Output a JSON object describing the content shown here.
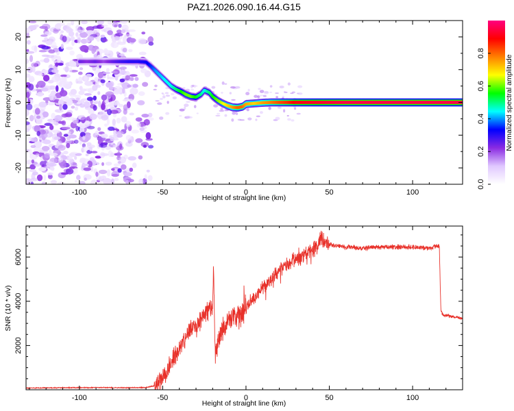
{
  "title": "PAZ1.2026.090.16.44.G15",
  "chart_data": [
    {
      "type": "heatmap",
      "xlabel": "Height of straight line (km)",
      "ylabel": "Frequency (Hz)",
      "xlim": [
        -132,
        130
      ],
      "ylim": [
        -25,
        25
      ],
      "xticks": [
        -100,
        -50,
        0,
        50,
        100
      ],
      "yticks": [
        -20,
        -10,
        0,
        10,
        20
      ],
      "colorbar": {
        "label": "Normalized spectral amplitude",
        "range": [
          0,
          1
        ],
        "ticks": [
          "0.0",
          "0.2",
          "0.4",
          "0.6",
          "0.8"
        ],
        "colors": [
          "#ffffff",
          "#e0c8ff",
          "#8a2be2",
          "#0000ff",
          "#00ffff",
          "#00ff00",
          "#ffff00",
          "#ff8000",
          "#ff0000",
          "#ff0080"
        ]
      },
      "ridge": {
        "x": [
          -100,
          -95,
          -90,
          -85,
          -80,
          -75,
          -70,
          -65,
          -60,
          -57,
          -54,
          -51,
          -48,
          -45,
          -42,
          -39,
          -36,
          -33,
          -30,
          -27,
          -25,
          -22,
          -20,
          -17,
          -14,
          -11,
          -8,
          -5,
          -2,
          0,
          5,
          10,
          15,
          20,
          25,
          30,
          40,
          60,
          80,
          100,
          120,
          130
        ],
        "y": [
          12.5,
          12.5,
          12.5,
          12.5,
          12.5,
          12.5,
          12.5,
          12.5,
          12.3,
          11,
          9.5,
          8,
          6.5,
          5,
          4,
          3.3,
          2.4,
          1.8,
          1.6,
          2.5,
          3.7,
          3,
          1.8,
          0.6,
          -0.3,
          -1,
          -1.5,
          -1.6,
          -1.3,
          -0.5,
          -0.3,
          -0.1,
          0,
          0,
          0,
          0,
          0,
          0,
          0,
          0,
          0,
          0
        ],
        "amplitude": [
          0.25,
          0.22,
          0.25,
          0.2,
          0.25,
          0.28,
          0.3,
          0.3,
          0.32,
          0.35,
          0.4,
          0.42,
          0.45,
          0.45,
          0.5,
          0.55,
          0.6,
          0.6,
          0.55,
          0.5,
          0.45,
          0.5,
          0.55,
          0.6,
          0.65,
          0.7,
          0.75,
          0.8,
          0.8,
          0.75,
          0.7,
          0.75,
          0.78,
          0.82,
          0.85,
          0.9,
          0.92,
          0.95,
          0.95,
          0.95,
          0.95,
          0.95
        ]
      },
      "noise_region_x": [
        -132,
        -57
      ]
    },
    {
      "type": "line",
      "xlabel": "Height of straight line (km)",
      "ylabel": "SNR (10 * v/v)",
      "xlim": [
        -132,
        130
      ],
      "ylim": [
        0,
        7400
      ],
      "xticks": [
        -100,
        -50,
        0,
        50,
        100
      ],
      "yticks": [
        2000,
        4000,
        6000
      ],
      "color": "#e8312a",
      "series": [
        {
          "x": [
            -132,
            -110,
            -90,
            -70,
            -60,
            -55,
            -52,
            -50,
            -48,
            -45,
            -42,
            -40,
            -37,
            -35,
            -32,
            -30,
            -27,
            -25,
            -22,
            -20,
            -19.5,
            -19,
            -18.5,
            -17,
            -15,
            -12,
            -10,
            -7,
            -5,
            -2,
            0,
            5,
            10,
            15,
            20,
            25,
            30,
            35,
            40,
            43,
            45,
            47,
            50,
            55,
            60,
            70,
            80,
            90,
            100,
            110,
            116,
            117,
            118,
            120,
            125,
            130
          ],
          "y": [
            80,
            90,
            100,
            90,
            100,
            180,
            350,
            500,
            800,
            1200,
            1600,
            1900,
            2300,
            2600,
            2700,
            2900,
            3200,
            3400,
            3700,
            3600,
            5800,
            3800,
            1700,
            2100,
            2700,
            2900,
            3100,
            3400,
            3300,
            3500,
            3700,
            4200,
            4600,
            5000,
            5400,
            5700,
            5900,
            6100,
            6300,
            6500,
            6900,
            6700,
            6600,
            6500,
            6450,
            6400,
            6450,
            6450,
            6450,
            6400,
            6500,
            3600,
            3400,
            3350,
            3300,
            3200
          ]
        }
      ]
    }
  ]
}
